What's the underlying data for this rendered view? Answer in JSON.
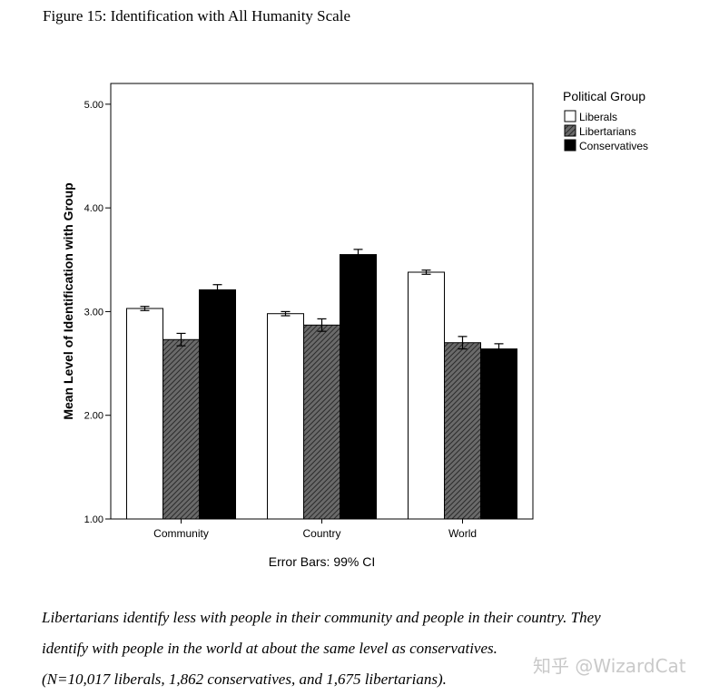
{
  "figure_title": "Figure 15: Identification with All Humanity Scale",
  "chart_data": {
    "type": "bar",
    "title": "",
    "xlabel": "",
    "ylabel": "Mean Level of Identification with Group",
    "ylim": [
      1.0,
      5.2
    ],
    "yticks": [
      "1.00",
      "2.00",
      "3.00",
      "4.00",
      "5.00"
    ],
    "ytick_values": [
      1,
      2,
      3,
      4,
      5
    ],
    "categories": [
      "Community",
      "Country",
      "World"
    ],
    "legend_title": "Political Group",
    "legend_position": "top-right",
    "error_bars_label": "Error Bars: 99% CI",
    "series": [
      {
        "name": "Liberals",
        "fill": "#ffffff",
        "pattern": "none",
        "values": [
          3.03,
          2.98,
          3.38
        ],
        "err": [
          0.02,
          0.02,
          0.02
        ]
      },
      {
        "name": "Libertarians",
        "fill": "#555555",
        "pattern": "hatch",
        "values": [
          2.73,
          2.87,
          2.7
        ],
        "err": [
          0.06,
          0.06,
          0.06
        ]
      },
      {
        "name": "Conservatives",
        "fill": "#000000",
        "pattern": "none",
        "values": [
          3.21,
          3.55,
          2.64
        ],
        "err": [
          0.05,
          0.05,
          0.05
        ]
      }
    ]
  },
  "caption": {
    "line1": "Libertarians identify less with people in their community and people in their country. They",
    "line2": "identify with people in the world at about the same level as conservatives.",
    "line3": "(N=10,017 liberals, 1,862 conservatives, and 1,675 libertarians)."
  },
  "watermark": "知乎 @WizardCat"
}
